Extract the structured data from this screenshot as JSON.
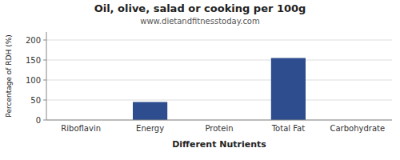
{
  "chart_data": {
    "type": "bar",
    "title": "Oil, olive, salad or cooking per 100g",
    "subtitle": "www.dietandfitnesstoday.com",
    "x_label": "Different Nutrients",
    "y_label": "Percentage of RDH (%)",
    "categories": [
      "Riboflavin",
      "Energy",
      "Protein",
      "Total Fat",
      "Carbohydrate"
    ],
    "values": [
      0,
      45,
      0,
      155,
      0
    ],
    "color": "#2e4d8e",
    "ylim": [
      0,
      220
    ],
    "yticks": [
      0,
      50,
      100,
      150,
      200
    ],
    "grid": true
  }
}
